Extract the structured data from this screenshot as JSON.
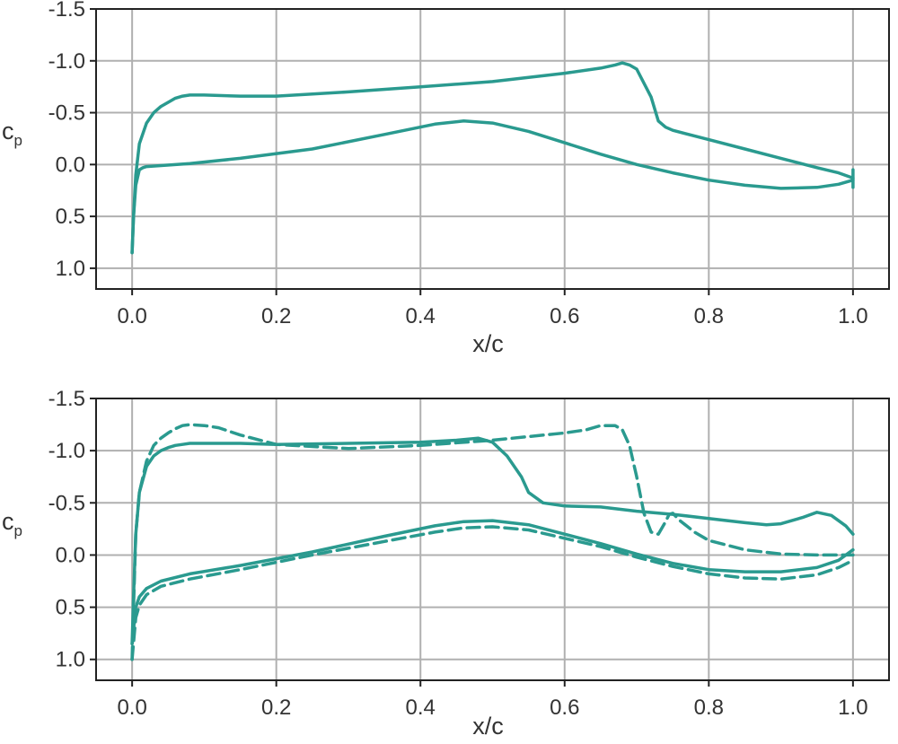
{
  "chart_data": [
    {
      "type": "line",
      "xlabel": "x/c",
      "ylabel": "c",
      "ylabel_sub": "p",
      "xlim": [
        -0.05,
        1.05
      ],
      "ylim": [
        1.2,
        -1.5
      ],
      "y_inverted": true,
      "grid": true,
      "xticks": [
        "0.0",
        "0.2",
        "0.4",
        "0.6",
        "0.8",
        "1.0"
      ],
      "xtick_values": [
        0.0,
        0.2,
        0.4,
        0.6,
        0.8,
        1.0
      ],
      "yticks": [
        "-1.5",
        "-1.0",
        "-0.5",
        "0.0",
        "0.5",
        "1.0"
      ],
      "ytick_values": [
        -1.5,
        -1.0,
        -0.5,
        0.0,
        0.5,
        1.0
      ],
      "color": "#2a9a8f",
      "series": [
        {
          "style": "solid",
          "x": [
            0.0,
            0.002,
            0.005,
            0.01,
            0.02,
            0.03,
            0.04,
            0.05,
            0.06,
            0.07,
            0.08,
            0.1,
            0.15,
            0.2,
            0.3,
            0.4,
            0.5,
            0.6,
            0.65,
            0.67,
            0.68,
            0.69,
            0.7,
            0.72,
            0.73,
            0.74,
            0.75,
            0.8,
            0.85,
            0.9,
            0.95,
            0.98,
            1.0
          ],
          "y": [
            0.85,
            0.5,
            0.1,
            -0.2,
            -0.4,
            -0.5,
            -0.56,
            -0.6,
            -0.64,
            -0.66,
            -0.67,
            -0.67,
            -0.66,
            -0.66,
            -0.7,
            -0.75,
            -0.8,
            -0.88,
            -0.93,
            -0.96,
            -0.98,
            -0.96,
            -0.92,
            -0.65,
            -0.42,
            -0.36,
            -0.33,
            -0.24,
            -0.15,
            -0.06,
            0.03,
            0.08,
            0.13
          ]
        },
        {
          "style": "solid",
          "x": [
            0.0,
            0.002,
            0.005,
            0.01,
            0.015,
            0.02,
            0.04,
            0.08,
            0.15,
            0.25,
            0.35,
            0.42,
            0.46,
            0.5,
            0.55,
            0.6,
            0.65,
            0.7,
            0.75,
            0.8,
            0.85,
            0.9,
            0.95,
            0.98,
            1.0
          ],
          "y": [
            0.85,
            0.5,
            0.2,
            0.05,
            0.03,
            0.02,
            0.01,
            -0.01,
            -0.06,
            -0.15,
            -0.29,
            -0.39,
            -0.42,
            -0.4,
            -0.32,
            -0.21,
            -0.1,
            0.0,
            0.08,
            0.15,
            0.2,
            0.23,
            0.22,
            0.19,
            0.15
          ]
        },
        {
          "style": "solid",
          "x": [
            1.0,
            1.0,
            1.0
          ],
          "y": [
            0.05,
            0.22,
            0.08
          ]
        }
      ]
    },
    {
      "type": "line",
      "xlabel": "x/c",
      "ylabel": "c",
      "ylabel_sub": "p",
      "xlim": [
        -0.05,
        1.05
      ],
      "ylim": [
        1.2,
        -1.5
      ],
      "y_inverted": true,
      "grid": true,
      "xticks": [
        "0.0",
        "0.2",
        "0.4",
        "0.6",
        "0.8",
        "1.0"
      ],
      "xtick_values": [
        0.0,
        0.2,
        0.4,
        0.6,
        0.8,
        1.0
      ],
      "yticks": [
        "-1.5",
        "-1.0",
        "-0.5",
        "0.0",
        "0.5",
        "1.0"
      ],
      "ytick_values": [
        -1.5,
        -1.0,
        -0.5,
        0.0,
        0.5,
        1.0
      ],
      "color": "#2a9a8f",
      "series": [
        {
          "style": "solid",
          "x": [
            0.0,
            0.002,
            0.005,
            0.01,
            0.02,
            0.03,
            0.04,
            0.05,
            0.06,
            0.07,
            0.08,
            0.1,
            0.15,
            0.2,
            0.3,
            0.4,
            0.45,
            0.48,
            0.5,
            0.52,
            0.54,
            0.55,
            0.57,
            0.6,
            0.65,
            0.7,
            0.75,
            0.8,
            0.85,
            0.88,
            0.9,
            0.93,
            0.95,
            0.97,
            0.99,
            1.0
          ],
          "y": [
            0.85,
            0.4,
            -0.2,
            -0.6,
            -0.85,
            -0.95,
            -1.0,
            -1.03,
            -1.05,
            -1.06,
            -1.07,
            -1.07,
            -1.07,
            -1.06,
            -1.07,
            -1.08,
            -1.1,
            -1.12,
            -1.08,
            -0.95,
            -0.75,
            -0.6,
            -0.5,
            -0.47,
            -0.46,
            -0.42,
            -0.39,
            -0.35,
            -0.31,
            -0.29,
            -0.3,
            -0.36,
            -0.41,
            -0.38,
            -0.28,
            -0.2
          ]
        },
        {
          "style": "solid",
          "x": [
            0.0,
            0.005,
            0.01,
            0.02,
            0.04,
            0.08,
            0.15,
            0.25,
            0.35,
            0.42,
            0.46,
            0.5,
            0.55,
            0.6,
            0.65,
            0.7,
            0.75,
            0.8,
            0.85,
            0.9,
            0.95,
            0.98,
            1.0
          ],
          "y": [
            0.85,
            0.5,
            0.4,
            0.32,
            0.25,
            0.18,
            0.1,
            -0.03,
            -0.18,
            -0.28,
            -0.32,
            -0.33,
            -0.29,
            -0.2,
            -0.11,
            -0.01,
            0.08,
            0.14,
            0.16,
            0.16,
            0.12,
            0.05,
            -0.05
          ]
        },
        {
          "style": "dashed",
          "x": [
            0.0,
            0.002,
            0.005,
            0.01,
            0.02,
            0.03,
            0.04,
            0.05,
            0.06,
            0.07,
            0.08,
            0.1,
            0.12,
            0.15,
            0.2,
            0.3,
            0.4,
            0.5,
            0.6,
            0.63,
            0.65,
            0.67,
            0.68,
            0.69,
            0.7,
            0.71,
            0.72,
            0.73,
            0.74,
            0.745,
            0.75,
            0.76,
            0.78,
            0.8,
            0.85,
            0.9,
            0.95,
            1.0
          ],
          "y": [
            1.0,
            0.5,
            -0.2,
            -0.6,
            -0.9,
            -1.05,
            -1.12,
            -1.17,
            -1.21,
            -1.24,
            -1.25,
            -1.24,
            -1.22,
            -1.15,
            -1.06,
            -1.02,
            -1.05,
            -1.1,
            -1.17,
            -1.2,
            -1.24,
            -1.24,
            -1.2,
            -1.05,
            -0.75,
            -0.4,
            -0.22,
            -0.2,
            -0.32,
            -0.39,
            -0.4,
            -0.33,
            -0.22,
            -0.14,
            -0.05,
            -0.01,
            0.0,
            0.0
          ]
        },
        {
          "style": "dashed",
          "x": [
            0.0,
            0.005,
            0.01,
            0.02,
            0.04,
            0.08,
            0.15,
            0.25,
            0.35,
            0.42,
            0.46,
            0.5,
            0.55,
            0.6,
            0.65,
            0.7,
            0.75,
            0.8,
            0.85,
            0.9,
            0.95,
            0.98,
            1.0
          ],
          "y": [
            1.0,
            0.6,
            0.48,
            0.38,
            0.3,
            0.23,
            0.14,
            0.0,
            -0.13,
            -0.22,
            -0.26,
            -0.27,
            -0.24,
            -0.16,
            -0.08,
            0.02,
            0.11,
            0.18,
            0.22,
            0.23,
            0.19,
            0.12,
            0.05
          ]
        }
      ]
    }
  ]
}
